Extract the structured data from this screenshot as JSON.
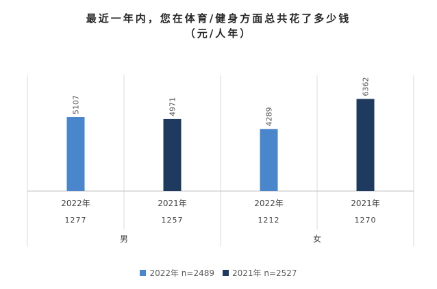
{
  "chart_data": {
    "type": "bar",
    "title_line1": "最近一年内，您在体育/健身方面总共花了多少钱",
    "title_line2": "（元/人年）",
    "categories": [
      {
        "year": "2022年",
        "n": "1277",
        "group": "男",
        "series": 0,
        "value": 5107
      },
      {
        "year": "2021年",
        "n": "1257",
        "group": "男",
        "series": 1,
        "value": 4971
      },
      {
        "year": "2022年",
        "n": "1212",
        "group": "女",
        "series": 0,
        "value": 4289
      },
      {
        "year": "2021年",
        "n": "1270",
        "group": "女",
        "series": 1,
        "value": 6362
      }
    ],
    "groups": [
      "男",
      "女"
    ],
    "series": [
      {
        "name": "2022年 n=2489",
        "color": "#4a86cb"
      },
      {
        "name": "2021年 n=2527",
        "color": "#1e3a5f"
      }
    ],
    "ylim": [
      0,
      7000
    ],
    "grid": "vertical separators",
    "legend": "bottom-center"
  }
}
